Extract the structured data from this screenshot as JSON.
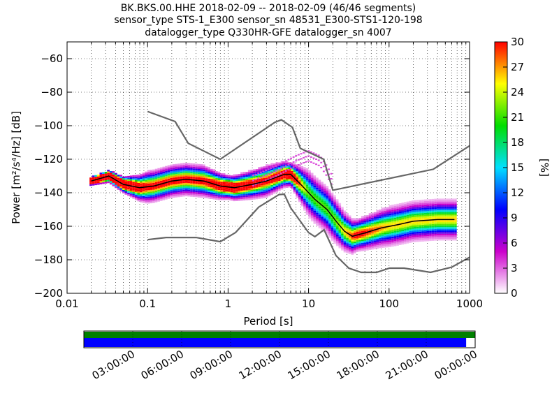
{
  "chart_data": {
    "type": "heatmap",
    "title": [
      "BK.BKS.00.HHE   2018-02-09 -- 2018-02-09  (46/46 segments)",
      "sensor_type STS-1_E300 sensor_sn 48531_E300-STS1-120-198",
      "datalogger_type Q330HR-GFE datalogger_sn 4007"
    ],
    "xlabel": "Period [s]",
    "ylabel": "Power [m²/s⁴/Hz] [dB]",
    "x_scale": "log",
    "xlim": [
      0.01,
      1000
    ],
    "ylim": [
      -200,
      -50
    ],
    "x_ticks": [
      {
        "value": 0.01,
        "label": "0.01"
      },
      {
        "value": 0.1,
        "label": "0.1"
      },
      {
        "value": 1,
        "label": "1"
      },
      {
        "value": 10,
        "label": "10"
      },
      {
        "value": 100,
        "label": "100"
      },
      {
        "value": 1000,
        "label": "1000"
      }
    ],
    "y_ticks": [
      {
        "value": -60,
        "label": "−60"
      },
      {
        "value": -80,
        "label": "−80"
      },
      {
        "value": -100,
        "label": "−100"
      },
      {
        "value": -120,
        "label": "−120"
      },
      {
        "value": -140,
        "label": "−140"
      },
      {
        "value": -160,
        "label": "−160"
      },
      {
        "value": -180,
        "label": "−180"
      },
      {
        "value": -200,
        "label": "−200"
      }
    ],
    "grid": true,
    "colorbar": {
      "label": "[%]",
      "min": 0,
      "max": 30,
      "ticks": [
        {
          "value": 0,
          "label": "0"
        },
        {
          "value": 3,
          "label": "3"
        },
        {
          "value": 6,
          "label": "6"
        },
        {
          "value": 9,
          "label": "9"
        },
        {
          "value": 12,
          "label": "12"
        },
        {
          "value": 15,
          "label": "15"
        },
        {
          "value": 18,
          "label": "18"
        },
        {
          "value": 21,
          "label": "21"
        },
        {
          "value": 24,
          "label": "24"
        },
        {
          "value": 27,
          "label": "27"
        },
        {
          "value": 30,
          "label": "30"
        }
      ],
      "colors": [
        "#ffffff",
        "#cc00cc",
        "#0000ff",
        "#00e0ff",
        "#00dd00",
        "#ffff00",
        "#ff0000"
      ]
    },
    "noise_model_high": [
      [
        0.1,
        -91.5
      ],
      [
        0.22,
        -97.5
      ],
      [
        0.32,
        -110.5
      ],
      [
        0.8,
        -120
      ],
      [
        3.8,
        -98
      ],
      [
        4.6,
        -96.5
      ],
      [
        6.3,
        -101
      ],
      [
        7.9,
        -113.5
      ],
      [
        15.4,
        -120
      ],
      [
        20,
        -138.5
      ],
      [
        354,
        -126
      ],
      [
        1000,
        -112
      ]
    ],
    "noise_model_low": [
      [
        0.1,
        -168
      ],
      [
        0.17,
        -166.7
      ],
      [
        0.4,
        -166.7
      ],
      [
        0.8,
        -169.2
      ],
      [
        1.24,
        -163.7
      ],
      [
        2.4,
        -148.6
      ],
      [
        4.3,
        -141.1
      ],
      [
        5,
        -140.9
      ],
      [
        6,
        -149
      ],
      [
        10,
        -163.8
      ],
      [
        12,
        -166.2
      ],
      [
        15.6,
        -162.1
      ],
      [
        21.9,
        -177.5
      ],
      [
        31.6,
        -185
      ],
      [
        45,
        -187.5
      ],
      [
        70,
        -187.5
      ],
      [
        101,
        -185
      ],
      [
        154,
        -185
      ],
      [
        328,
        -187.5
      ],
      [
        600,
        -184.4
      ],
      [
        1000,
        -178.5
      ]
    ],
    "median_psd": [
      [
        0.02,
        -133
      ],
      [
        0.028,
        -131
      ],
      [
        0.033,
        -130
      ],
      [
        0.05,
        -135
      ],
      [
        0.08,
        -137
      ],
      [
        0.12,
        -136
      ],
      [
        0.2,
        -133
      ],
      [
        0.3,
        -132
      ],
      [
        0.5,
        -133
      ],
      [
        0.8,
        -136
      ],
      [
        1.2,
        -137
      ],
      [
        2,
        -135
      ],
      [
        3,
        -133
      ],
      [
        5,
        -129
      ],
      [
        6,
        -129
      ],
      [
        8,
        -135
      ],
      [
        12,
        -144
      ],
      [
        17,
        -150
      ],
      [
        22,
        -157
      ],
      [
        28,
        -163
      ],
      [
        35,
        -166
      ],
      [
        50,
        -164
      ],
      [
        80,
        -161
      ],
      [
        130,
        -159
      ],
      [
        200,
        -157
      ],
      [
        400,
        -156
      ],
      [
        650,
        -156
      ]
    ],
    "psd_spread": [
      [
        0.02,
        1
      ],
      [
        0.05,
        2
      ],
      [
        0.1,
        4
      ],
      [
        0.5,
        4
      ],
      [
        1,
        3
      ],
      [
        3,
        4
      ],
      [
        6,
        3
      ],
      [
        10,
        6
      ],
      [
        20,
        6
      ],
      [
        40,
        4
      ],
      [
        100,
        5
      ],
      [
        650,
        5
      ]
    ],
    "upper_branch": [
      [
        2,
        -130
      ],
      [
        4,
        -124
      ],
      [
        7,
        -118
      ],
      [
        10,
        -115
      ],
      [
        14,
        -118
      ],
      [
        17,
        -124
      ],
      [
        20,
        -130
      ]
    ],
    "timeline": {
      "tick_labels": [
        "03:00:00",
        "06:00:00",
        "09:00:00",
        "12:00:00",
        "15:00:00",
        "18:00:00",
        "21:00:00",
        "00:00:00"
      ],
      "coverage_green": 1.0,
      "coverage_blue": 0.977,
      "green_color": "#008000",
      "blue_color": "#0000ff"
    },
    "line_color": "#666666"
  }
}
